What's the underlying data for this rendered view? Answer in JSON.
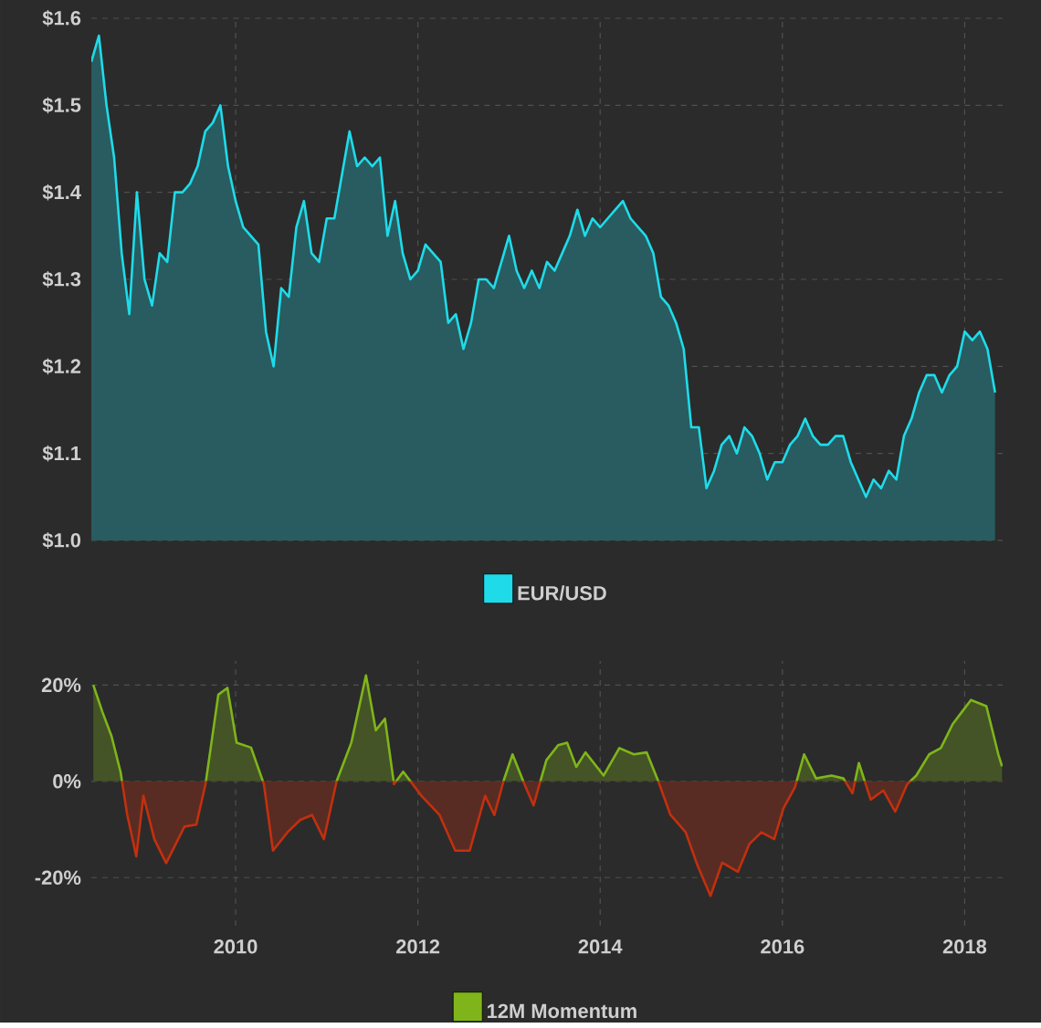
{
  "chart_data": [
    {
      "type": "area",
      "xlim": [
        "2008-06",
        "2018-06"
      ],
      "ylim": [
        1.0,
        1.6
      ],
      "xticks": [
        "2010",
        "2012",
        "2014",
        "2016",
        "2018"
      ],
      "yticks": [
        {
          "value": 1.0,
          "label": "$1.0"
        },
        {
          "value": 1.1,
          "label": "$1.1"
        },
        {
          "value": 1.2,
          "label": "$1.2"
        },
        {
          "value": 1.3,
          "label": "$1.3"
        },
        {
          "value": 1.4,
          "label": "$1.4"
        },
        {
          "value": 1.5,
          "label": "$1.5"
        },
        {
          "value": 1.6,
          "label": "$1.6"
        }
      ],
      "tick_labels": "y",
      "grid": true,
      "legend": "bottom",
      "x": [
        "2008-06",
        "2008-07",
        "2008-08",
        "2008-09",
        "2008-10",
        "2008-11",
        "2008-12",
        "2009-01",
        "2009-02",
        "2009-03",
        "2009-04",
        "2009-05",
        "2009-06",
        "2009-07",
        "2009-08",
        "2009-09",
        "2009-10",
        "2009-11",
        "2009-12",
        "2010-01",
        "2010-02",
        "2010-03",
        "2010-04",
        "2010-05",
        "2010-06",
        "2010-07",
        "2010-08",
        "2010-09",
        "2010-10",
        "2010-11",
        "2010-12",
        "2011-01",
        "2011-02",
        "2011-03",
        "2011-04",
        "2011-05",
        "2011-06",
        "2011-07",
        "2011-08",
        "2011-09",
        "2011-10",
        "2011-11",
        "2011-12",
        "2012-01",
        "2012-02",
        "2012-03",
        "2012-04",
        "2012-05",
        "2012-06",
        "2012-07",
        "2012-08",
        "2012-09",
        "2012-10",
        "2012-11",
        "2012-12",
        "2013-01",
        "2013-02",
        "2013-03",
        "2013-04",
        "2013-05",
        "2013-06",
        "2013-07",
        "2013-08",
        "2013-09",
        "2013-10",
        "2013-11",
        "2013-12",
        "2014-01",
        "2014-02",
        "2014-03",
        "2014-04",
        "2014-05",
        "2014-06",
        "2014-07",
        "2014-08",
        "2014-09",
        "2014-10",
        "2014-11",
        "2014-12",
        "2015-01",
        "2015-02",
        "2015-03",
        "2015-04",
        "2015-05",
        "2015-06",
        "2015-07",
        "2015-08",
        "2015-09",
        "2015-10",
        "2015-11",
        "2015-12",
        "2016-01",
        "2016-02",
        "2016-03",
        "2016-04",
        "2016-05",
        "2016-06",
        "2016-07",
        "2016-08",
        "2016-09",
        "2016-10",
        "2016-11",
        "2016-12",
        "2017-01",
        "2017-02",
        "2017-03",
        "2017-04",
        "2017-05",
        "2017-06",
        "2017-07",
        "2017-08",
        "2017-09",
        "2017-10",
        "2017-11",
        "2017-12",
        "2018-01",
        "2018-02",
        "2018-03",
        "2018-04",
        "2018-05"
      ],
      "series": [
        {
          "name": "EUR/USD",
          "color": "#1fdbe9",
          "values": [
            1.55,
            1.58,
            1.5,
            1.44,
            1.33,
            1.26,
            1.4,
            1.3,
            1.27,
            1.33,
            1.32,
            1.4,
            1.4,
            1.41,
            1.43,
            1.47,
            1.48,
            1.5,
            1.43,
            1.39,
            1.36,
            1.35,
            1.34,
            1.24,
            1.2,
            1.29,
            1.28,
            1.36,
            1.39,
            1.33,
            1.32,
            1.37,
            1.37,
            1.42,
            1.47,
            1.43,
            1.44,
            1.43,
            1.44,
            1.35,
            1.39,
            1.33,
            1.3,
            1.31,
            1.34,
            1.33,
            1.32,
            1.25,
            1.26,
            1.22,
            1.25,
            1.3,
            1.3,
            1.29,
            1.32,
            1.35,
            1.31,
            1.29,
            1.31,
            1.29,
            1.32,
            1.31,
            1.33,
            1.35,
            1.38,
            1.35,
            1.37,
            1.36,
            1.37,
            1.38,
            1.39,
            1.37,
            1.36,
            1.35,
            1.33,
            1.28,
            1.27,
            1.25,
            1.22,
            1.13,
            1.13,
            1.06,
            1.08,
            1.11,
            1.12,
            1.1,
            1.13,
            1.12,
            1.1,
            1.07,
            1.09,
            1.09,
            1.11,
            1.12,
            1.14,
            1.12,
            1.11,
            1.11,
            1.12,
            1.12,
            1.09,
            1.07,
            1.05,
            1.07,
            1.06,
            1.08,
            1.07,
            1.12,
            1.14,
            1.17,
            1.19,
            1.19,
            1.17,
            1.19,
            1.2,
            1.24,
            1.23,
            1.24,
            1.22,
            1.17
          ]
        }
      ]
    },
    {
      "type": "area",
      "xlim": [
        "2008-06",
        "2018-06"
      ],
      "ylim": [
        -30,
        25
      ],
      "xticks": [
        "2010",
        "2012",
        "2014",
        "2016",
        "2018"
      ],
      "yticks": [
        {
          "value": -20,
          "label": "-20%"
        },
        {
          "value": 0,
          "label": "0%"
        },
        {
          "value": 20,
          "label": "20%"
        }
      ],
      "grid": true,
      "legend": "bottom",
      "x": [
        "2008-06-09",
        "2008-07-15",
        "2008-08-21",
        "2008-09-27",
        "2008-10-23",
        "2008-11-29",
        "2008-12-27",
        "2009-02-10",
        "2009-03-27",
        "2009-06-09",
        "2009-07-26",
        "2009-09-02",
        "2009-10-23",
        "2009-11-29",
        "2010-01-05",
        "2010-03-02",
        "2010-04-23",
        "2010-05-29",
        "2010-07-26",
        "2010-09-17",
        "2010-11-03",
        "2010-12-20",
        "2011-02-10",
        "2011-04-08",
        "2011-06-06",
        "2011-07-15",
        "2011-08-21",
        "2011-09-27",
        "2011-11-03",
        "2012-01-15",
        "2012-03-27",
        "2012-05-29",
        "2012-07-26",
        "2012-09-27",
        "2012-11-03",
        "2012-12-09",
        "2013-01-15",
        "2013-03-02",
        "2013-04-08",
        "2013-05-29",
        "2013-07-15",
        "2013-08-21",
        "2013-09-27",
        "2013-11-03",
        "2014-01-15",
        "2014-03-17",
        "2014-05-14",
        "2014-07-05",
        "2014-08-21",
        "2014-10-08",
        "2014-12-09",
        "2015-01-26",
        "2015-03-17",
        "2015-05-03",
        "2015-07-05",
        "2015-08-21",
        "2015-10-08",
        "2015-11-29",
        "2016-01-05",
        "2016-02-21",
        "2016-03-27",
        "2016-05-14",
        "2016-07-15",
        "2016-09-02",
        "2016-10-08",
        "2016-11-03",
        "2016-12-20",
        "2017-02-10",
        "2017-03-27",
        "2017-05-14",
        "2017-06-20",
        "2017-08-11",
        "2017-09-27",
        "2017-11-14",
        "2017-12-20",
        "2018-01-26",
        "2018-03-27",
        "2018-05-14",
        "2018-05-29"
      ],
      "series": [
        {
          "name": "12M Momentum",
          "colors": [
            "#7fb51a",
            "#7fb51a",
            "#7fb51a",
            "#7fb51a",
            "#c2300f",
            "#c2300f",
            "#c2300f",
            "#c2300f",
            "#c2300f",
            "#c2300f",
            "#c2300f",
            "#c2300f",
            "#7fb51a",
            "#7fb51a",
            "#7fb51a",
            "#7fb51a",
            "#c2300f",
            "#c2300f",
            "#c2300f",
            "#c2300f",
            "#c2300f",
            "#c2300f",
            "#7fb51a",
            "#7fb51a",
            "#7fb51a",
            "#7fb51a",
            "#7fb51a",
            "#c2300f",
            "#7fb51a",
            "#c2300f",
            "#c2300f",
            "#c2300f",
            "#c2300f",
            "#c2300f",
            "#c2300f",
            "#7fb51a",
            "#7fb51a",
            "#c2300f",
            "#c2300f",
            "#7fb51a",
            "#7fb51a",
            "#7fb51a",
            "#7fb51a",
            "#7fb51a",
            "#7fb51a",
            "#7fb51a",
            "#7fb51a",
            "#7fb51a",
            "#7fb51a",
            "#c2300f",
            "#c2300f",
            "#c2300f",
            "#c2300f",
            "#c2300f",
            "#c2300f",
            "#c2300f",
            "#c2300f",
            "#c2300f",
            "#c2300f",
            "#c2300f",
            "#7fb51a",
            "#7fb51a",
            "#7fb51a",
            "#7fb51a",
            "#c2300f",
            "#7fb51a",
            "#c2300f",
            "#c2300f",
            "#c2300f",
            "#c2300f",
            "#7fb51a",
            "#7fb51a",
            "#7fb51a",
            "#7fb51a",
            "#7fb51a",
            "#7fb51a",
            "#7fb51a",
            "#7fb51a",
            "#7fb51a"
          ],
          "values": [
            20,
            14.4,
            9.4,
            1.9,
            -6.9,
            -15.6,
            -3,
            -12,
            -17,
            -9.4,
            -9,
            -0.6,
            18,
            19.4,
            8,
            7,
            -0.6,
            -14.4,
            -10.6,
            -8,
            -7,
            -12,
            0,
            8,
            22,
            10.6,
            13,
            -0.6,
            2,
            -3,
            -7,
            -14.4,
            -14.4,
            -3,
            -7,
            0,
            5.6,
            -0.6,
            -5,
            4.4,
            7.5,
            8,
            3,
            6,
            1.2,
            6.9,
            5.6,
            6,
            0,
            -6.9,
            -10.6,
            -17.5,
            -23.8,
            -16.9,
            -18.8,
            -13,
            -10.6,
            -12,
            -5.6,
            -1.2,
            5.6,
            0.6,
            1.2,
            0.6,
            -2.5,
            3.8,
            -3.8,
            -1.9,
            -6.3,
            -0.6,
            1.2,
            5.6,
            6.9,
            11.9,
            14.4,
            16.9,
            15.6,
            5.6,
            3.1
          ]
        }
      ]
    }
  ]
}
